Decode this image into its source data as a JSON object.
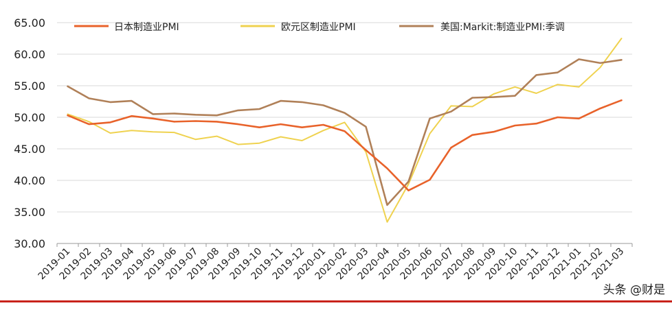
{
  "chart_data": {
    "type": "line",
    "title": "",
    "xlabel": "",
    "ylabel": "",
    "ylim": [
      30,
      65
    ],
    "y_ticks": [
      "30.00",
      "35.00",
      "40.00",
      "45.00",
      "50.00",
      "55.00",
      "60.00",
      "65.00"
    ],
    "grid": "horizontal",
    "legend_position": "top",
    "categories": [
      "2019-01",
      "2019-02",
      "2019-03",
      "2019-04",
      "2019-05",
      "2019-06",
      "2019-07",
      "2019-08",
      "2019-09",
      "2019-10",
      "2019-11",
      "2019-12",
      "2020-01",
      "2020-02",
      "2020-03",
      "2020-04",
      "2020-05",
      "2020-06",
      "2020-07",
      "2020-08",
      "2020-09",
      "2020-10",
      "2020-11",
      "2020-12",
      "2021-01",
      "2021-02",
      "2021-03"
    ],
    "series": [
      {
        "name": "日本制造业PMI",
        "color": "#e8622a",
        "values": [
          50.3,
          48.9,
          49.2,
          50.2,
          49.8,
          49.3,
          49.4,
          49.3,
          48.9,
          48.4,
          48.9,
          48.4,
          48.8,
          47.8,
          44.8,
          41.9,
          38.4,
          40.1,
          45.2,
          47.2,
          47.7,
          48.7,
          49.0,
          50.0,
          49.8,
          51.4,
          52.7
        ]
      },
      {
        "name": "欧元区制造业PMI",
        "color": "#efd24f",
        "values": [
          50.5,
          49.3,
          47.5,
          47.9,
          47.7,
          47.6,
          46.5,
          47.0,
          45.7,
          45.9,
          46.9,
          46.3,
          47.9,
          49.2,
          44.5,
          33.4,
          39.4,
          47.4,
          51.8,
          51.7,
          53.7,
          54.8,
          53.8,
          55.2,
          54.8,
          57.9,
          62.5
        ]
      },
      {
        "name": "美国:Markit:制造业PMI:季调",
        "color": "#b08058",
        "values": [
          54.9,
          53.0,
          52.4,
          52.6,
          50.5,
          50.6,
          50.4,
          50.3,
          51.1,
          51.3,
          52.6,
          52.4,
          51.9,
          50.7,
          48.5,
          36.1,
          39.8,
          49.8,
          50.9,
          53.1,
          53.2,
          53.4,
          56.7,
          57.1,
          59.2,
          58.6,
          59.1
        ]
      }
    ]
  },
  "watermark": "头条 @财是"
}
